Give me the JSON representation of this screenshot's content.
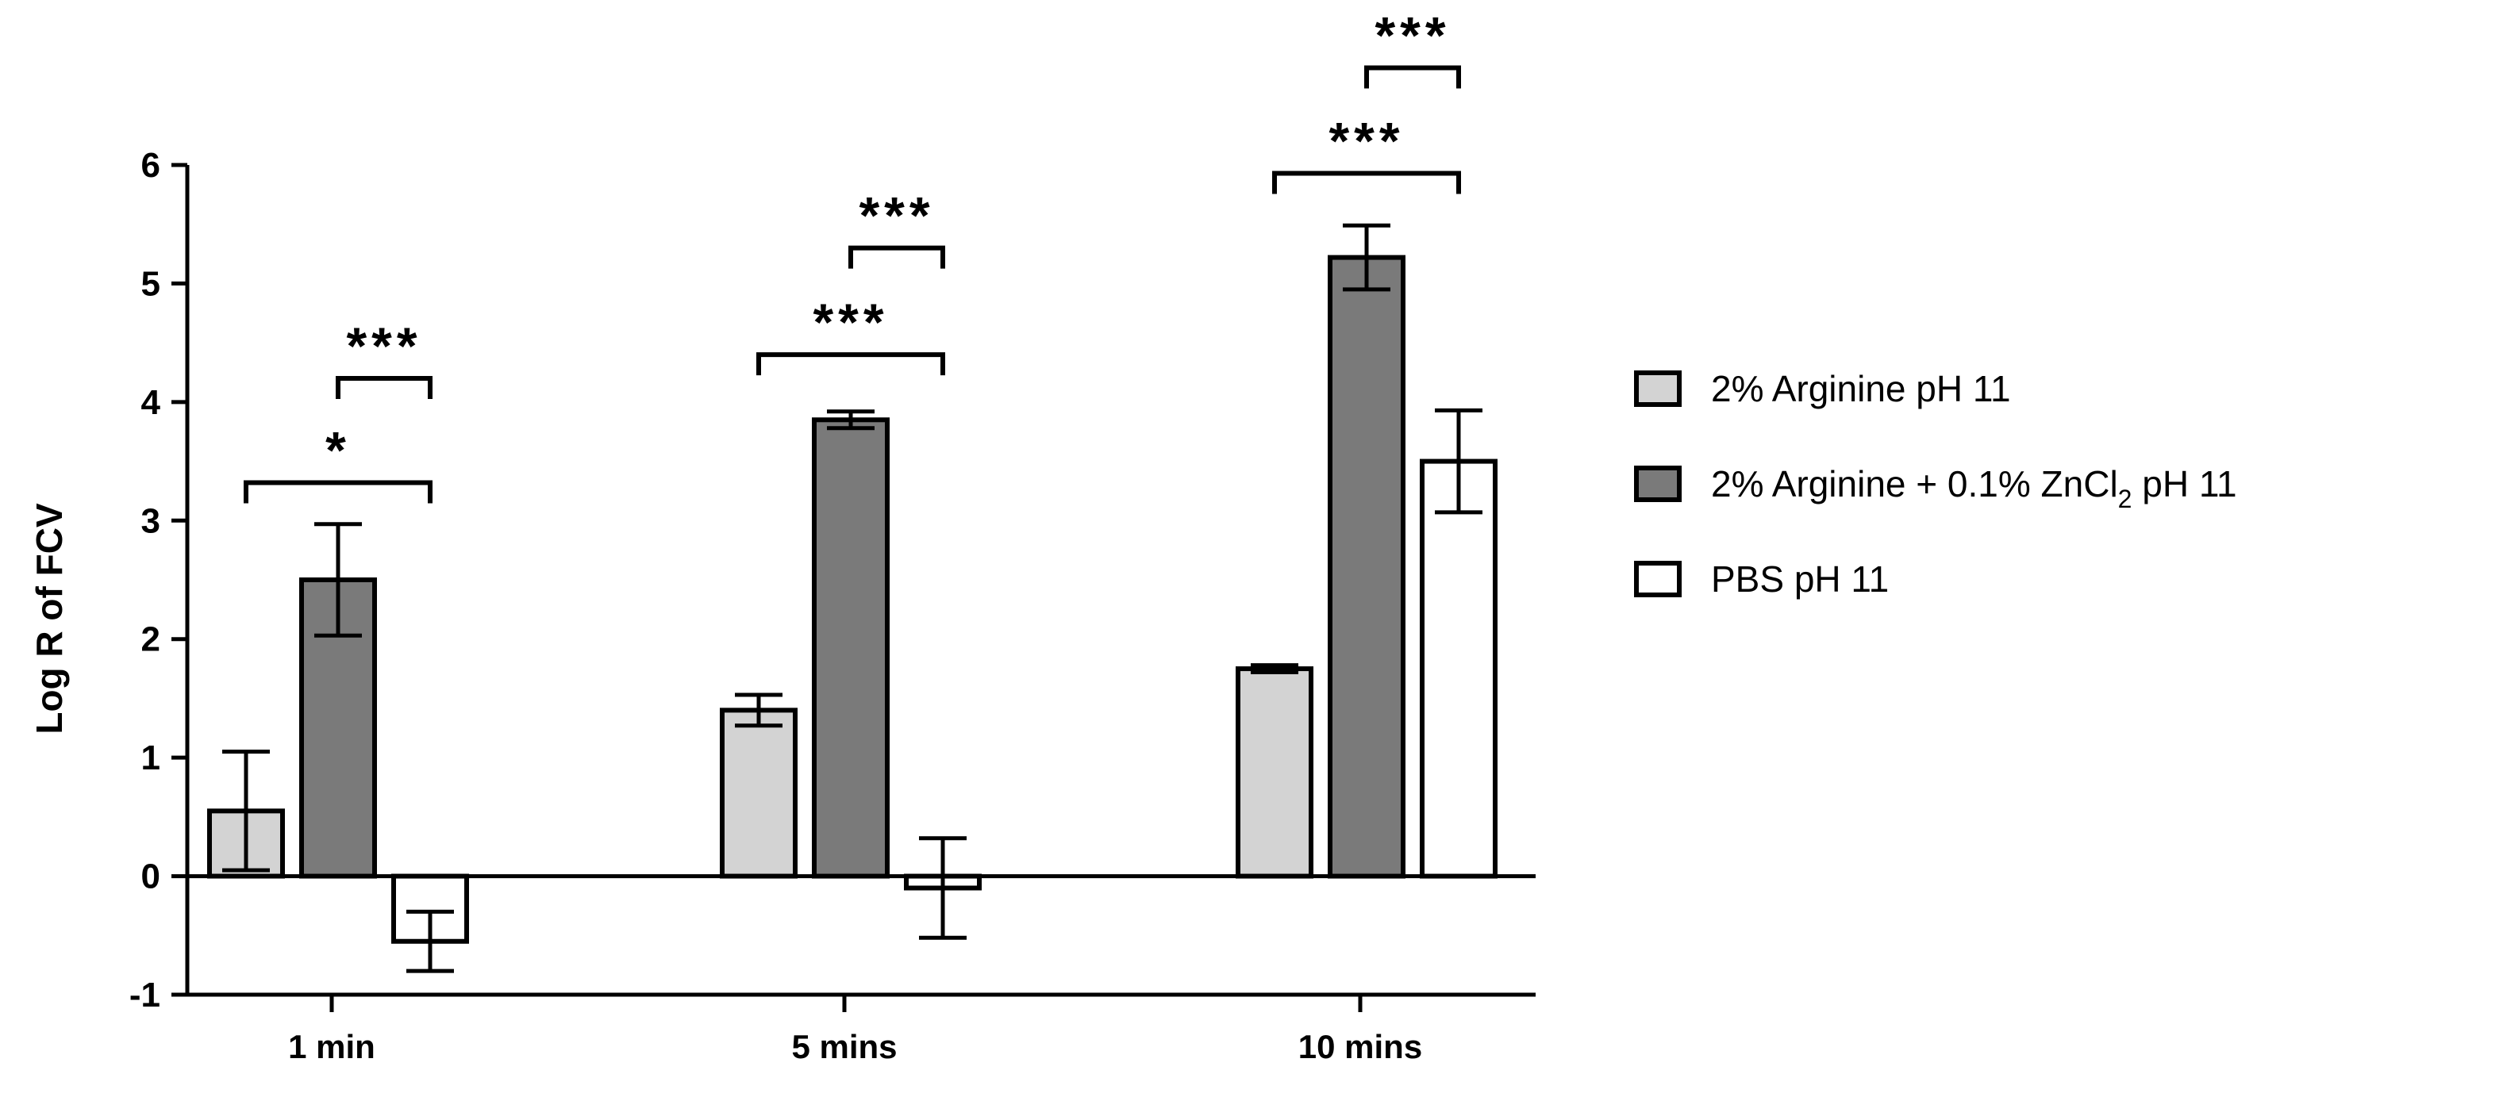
{
  "chart_data": {
    "type": "bar",
    "ylabel": "Log R of FCV",
    "xlabel": "",
    "ylim": [
      -1,
      6
    ],
    "yticks": [
      -1,
      0,
      1,
      2,
      3,
      4,
      5,
      6
    ],
    "categories": [
      "1 min",
      "5 mins",
      "10 mins"
    ],
    "series": [
      {
        "name": "2% Arginine pH 11",
        "color": "#d3d3d3",
        "values": [
          0.55,
          1.4,
          1.75
        ],
        "errors": [
          0.5,
          0.13,
          0.03
        ]
      },
      {
        "name": "2% Arginine + 0.1% ZnCl",
        "name_sub": "2",
        "name_suffix": " pH 11",
        "color": "#7a7a7a",
        "values": [
          2.5,
          3.85,
          5.22
        ],
        "errors": [
          0.47,
          0.07,
          0.27
        ]
      },
      {
        "name": "PBS pH 11",
        "color": "#ffffff",
        "values": [
          -0.55,
          -0.1,
          3.5
        ],
        "errors": [
          0.25,
          0.42,
          0.43
        ]
      }
    ],
    "significance": [
      {
        "category": 0,
        "from_series": 0,
        "to_series": 2,
        "y": 3.32,
        "label": "*"
      },
      {
        "category": 0,
        "from_series": 1,
        "to_series": 2,
        "y": 4.2,
        "label": "***"
      },
      {
        "category": 1,
        "from_series": 0,
        "to_series": 2,
        "y": 4.4,
        "label": "***"
      },
      {
        "category": 1,
        "from_series": 1,
        "to_series": 2,
        "y": 5.3,
        "label": "***"
      },
      {
        "category": 2,
        "from_series": 0,
        "to_series": 2,
        "y": 5.93,
        "label": "***"
      },
      {
        "category": 2,
        "from_series": 1,
        "to_series": 2,
        "y": 6.82,
        "label": "***"
      }
    ],
    "legend_position": "right"
  }
}
